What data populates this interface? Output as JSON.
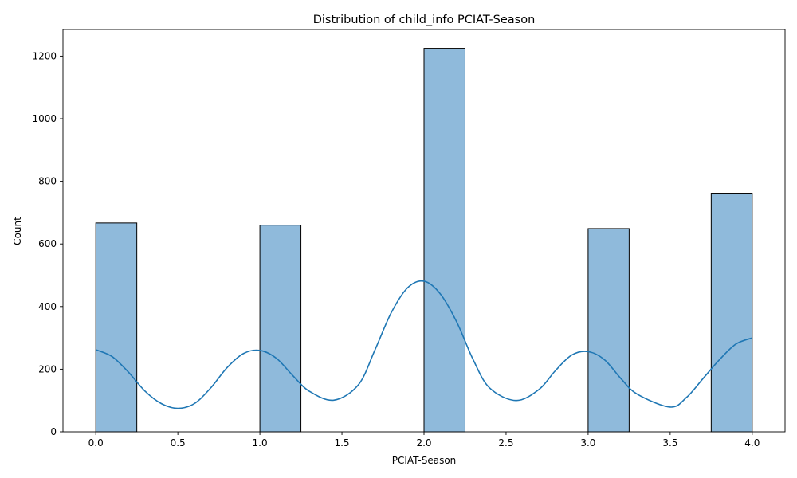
{
  "chart_data": {
    "type": "bar",
    "title": "Distribution of child_info PCIAT-Season",
    "xlabel": "PCIAT-Season",
    "ylabel": "Count",
    "xlim": [
      -0.2,
      4.2
    ],
    "ylim": [
      0,
      1285
    ],
    "xticks": [
      "0.0",
      "0.5",
      "1.0",
      "1.5",
      "2.0",
      "2.5",
      "3.0",
      "3.5",
      "4.0"
    ],
    "yticks": [
      "0",
      "200",
      "400",
      "600",
      "800",
      "1000",
      "1200"
    ],
    "grid": false,
    "bins": [
      {
        "x0": 0.0,
        "x1": 0.25,
        "count": 667
      },
      {
        "x0": 1.0,
        "x1": 1.25,
        "count": 660
      },
      {
        "x0": 2.0,
        "x1": 2.25,
        "count": 1225
      },
      {
        "x0": 3.0,
        "x1": 3.25,
        "count": 649
      },
      {
        "x0": 3.75,
        "x1": 4.0,
        "count": 762
      }
    ],
    "kde": {
      "x": [
        0.0,
        0.1,
        0.2,
        0.3,
        0.4,
        0.5,
        0.6,
        0.7,
        0.8,
        0.9,
        1.0,
        1.1,
        1.2,
        1.3,
        1.45,
        1.6,
        1.7,
        1.8,
        1.9,
        2.0,
        2.1,
        2.2,
        2.3,
        2.4,
        2.56,
        2.7,
        2.8,
        2.9,
        3.0,
        3.1,
        3.2,
        3.3,
        3.5,
        3.6,
        3.7,
        3.8,
        3.9,
        4.0
      ],
      "y": [
        262,
        240,
        190,
        130,
        90,
        75,
        90,
        140,
        205,
        250,
        260,
        235,
        180,
        130,
        101,
        150,
        260,
        380,
        460,
        481,
        440,
        350,
        230,
        140,
        100,
        135,
        195,
        245,
        256,
        230,
        170,
        120,
        79,
        110,
        170,
        230,
        280,
        300
      ]
    },
    "colors": {
      "bar_fill": "#8fbadb",
      "bar_edge": "#000000",
      "kde_line": "#1f77b4"
    }
  }
}
